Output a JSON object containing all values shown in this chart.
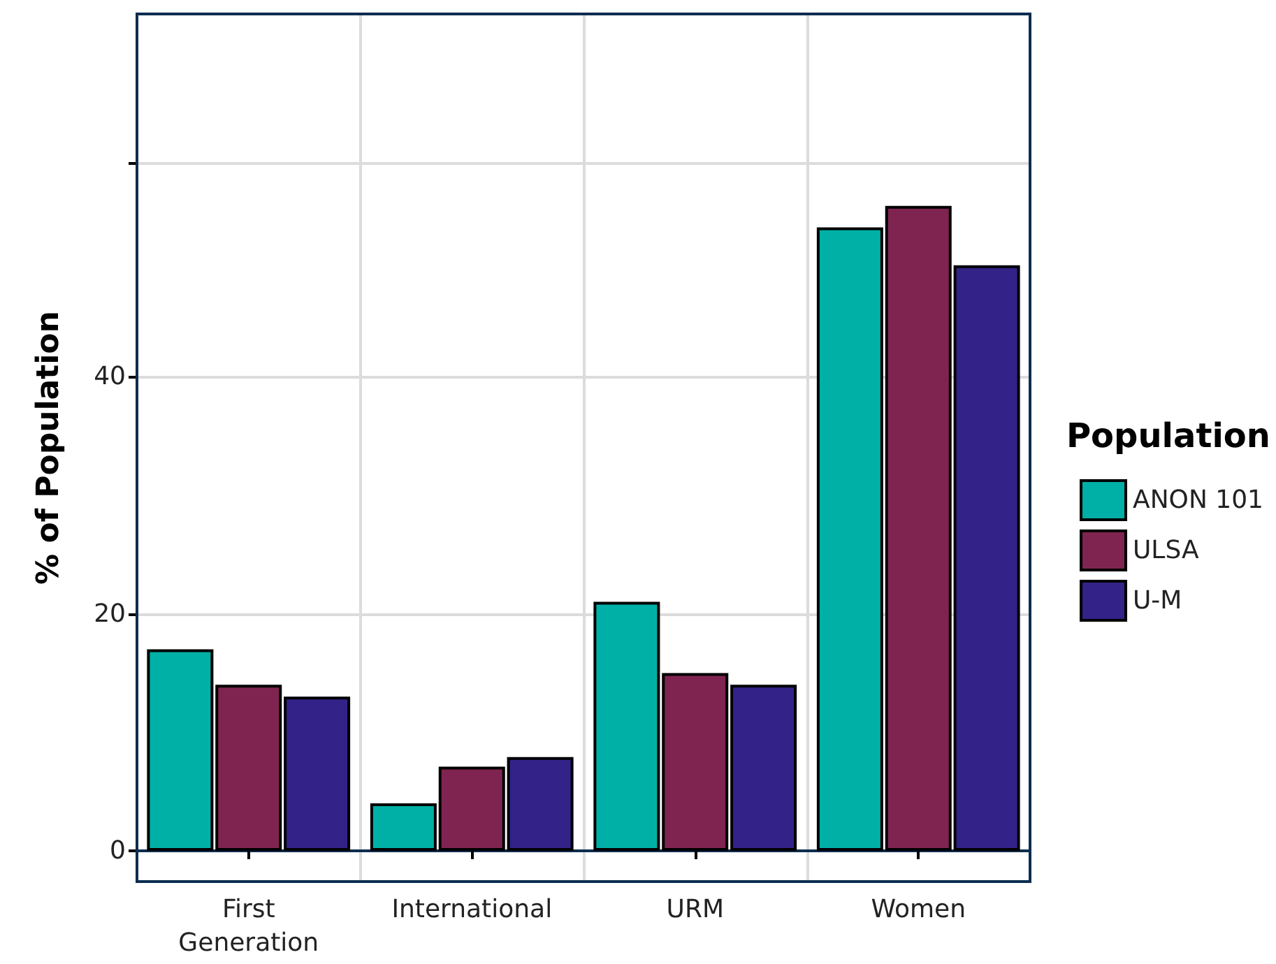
{
  "chart_data": {
    "type": "bar",
    "ylabel": "% of Population",
    "legend_title": "Population",
    "categories": [
      "First\nGeneration",
      "International",
      "URM",
      "Women"
    ],
    "series": [
      {
        "name": "ANON 101",
        "color": "#00b0a6",
        "values": [
          17,
          4,
          21,
          52.6
        ]
      },
      {
        "name": "ULSA",
        "color": "#7f2450",
        "values": [
          14,
          7.1,
          15,
          54.4
        ]
      },
      {
        "name": "U-M",
        "color": "#332288",
        "values": [
          13,
          7.9,
          14,
          49.4
        ]
      }
    ],
    "ylim": [
      -2.6,
      70.6
    ],
    "yticks": [
      0,
      20,
      40,
      {
        "value": 58,
        "label": null
      }
    ],
    "grid": true,
    "legend": "right"
  }
}
